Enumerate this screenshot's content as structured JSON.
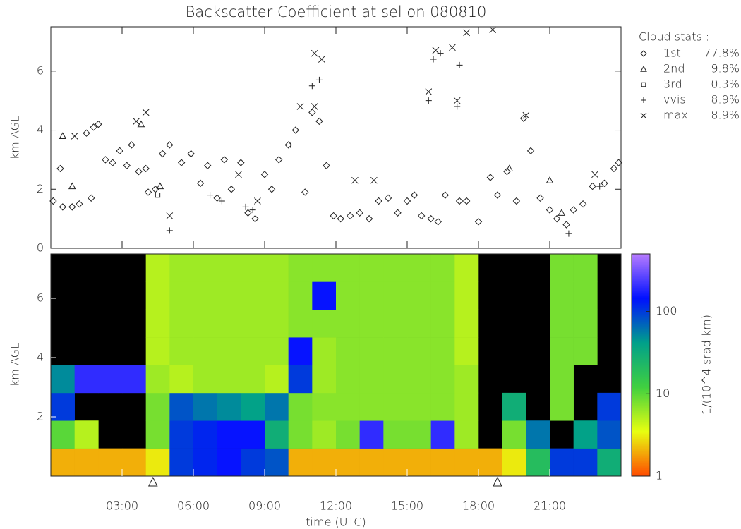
{
  "chart_data": [
    {
      "type": "scatter",
      "title": "Backscatter Coefficient at sel on 080810",
      "ylabel": "km AGL",
      "xlim": [
        0,
        24
      ],
      "ylim": [
        0,
        7.5
      ],
      "yticks": [
        0,
        2,
        4,
        6
      ],
      "legend_title": "Cloud stats.:",
      "series": [
        {
          "name": "1st",
          "percent": "77.8%",
          "marker": "diamond",
          "color": "#222222",
          "x": [
            0.1,
            0.4,
            0.5,
            0.9,
            1.2,
            1.5,
            1.8,
            2.0,
            1.7,
            2.3,
            2.6,
            2.9,
            3.2,
            3.4,
            3.7,
            4.0,
            4.1,
            4.4,
            4.7,
            5.0,
            5.5,
            5.9,
            6.3,
            6.6,
            7.0,
            7.3,
            7.6,
            8.0,
            8.3,
            8.6,
            9.0,
            9.3,
            9.6,
            10.0,
            10.3,
            10.7,
            11.0,
            11.3,
            11.6,
            11.9,
            12.2,
            12.6,
            13.0,
            13.4,
            13.8,
            14.2,
            14.6,
            15.0,
            15.3,
            15.6,
            16.0,
            16.3,
            16.6,
            17.2,
            17.5,
            18.0,
            18.5,
            18.8,
            19.2,
            19.6,
            19.9,
            20.2,
            20.6,
            21.0,
            21.3,
            21.7,
            22.0,
            22.4,
            22.8,
            23.3,
            23.7,
            23.9
          ],
          "y": [
            1.6,
            2.7,
            1.4,
            1.4,
            1.5,
            3.9,
            4.1,
            4.2,
            1.7,
            3.0,
            2.9,
            3.3,
            2.8,
            3.5,
            2.6,
            2.7,
            1.9,
            2.0,
            3.2,
            3.5,
            2.9,
            3.2,
            2.2,
            2.8,
            1.7,
            3.0,
            2.0,
            2.9,
            1.2,
            1.0,
            2.5,
            2.0,
            3.0,
            3.5,
            4.0,
            1.9,
            4.6,
            4.3,
            2.8,
            1.1,
            1.0,
            1.1,
            1.2,
            1.0,
            1.6,
            1.7,
            1.2,
            1.6,
            1.8,
            1.1,
            1.0,
            0.9,
            1.8,
            1.6,
            1.6,
            0.9,
            2.4,
            1.8,
            2.6,
            1.6,
            4.4,
            3.3,
            1.7,
            1.3,
            1.0,
            0.8,
            1.3,
            1.5,
            2.1,
            2.2,
            2.7,
            2.9
          ]
        },
        {
          "name": "2nd",
          "percent": "9.8%",
          "marker": "triangle",
          "color": "#222222",
          "x": [
            0.5,
            0.9,
            3.8,
            4.6,
            19.3,
            21.0,
            21.5
          ],
          "y": [
            3.8,
            2.1,
            4.2,
            2.1,
            2.7,
            2.3,
            1.2
          ]
        },
        {
          "name": "3rd",
          "percent": "0.3%",
          "marker": "square",
          "color": "#222222",
          "x": [
            4.5
          ],
          "y": [
            1.8
          ]
        },
        {
          "name": "vvis",
          "percent": "8.9%",
          "marker": "plus",
          "color": "#222222",
          "x": [
            5.0,
            6.7,
            7.2,
            8.2,
            8.5,
            11.0,
            11.3,
            15.9,
            16.1,
            16.4,
            17.1,
            17.2,
            21.8,
            23.1,
            10.1
          ],
          "y": [
            0.6,
            1.8,
            1.6,
            1.4,
            1.3,
            5.5,
            5.7,
            5.0,
            6.4,
            6.6,
            4.8,
            6.2,
            0.5,
            2.1,
            3.5
          ]
        },
        {
          "name": "max",
          "percent": "8.9%",
          "marker": "cross",
          "color": "#222222",
          "x": [
            1.0,
            3.6,
            4.0,
            5.0,
            7.9,
            8.7,
            10.5,
            11.1,
            11.4,
            11.1,
            12.8,
            13.6,
            15.9,
            16.2,
            17.1,
            16.9,
            17.5,
            18.6,
            20.0,
            22.9
          ],
          "y": [
            3.8,
            4.3,
            4.6,
            1.1,
            2.5,
            1.6,
            4.8,
            6.6,
            6.4,
            4.8,
            2.3,
            2.3,
            5.3,
            6.7,
            5.0,
            6.8,
            7.3,
            7.4,
            4.5,
            2.5
          ]
        }
      ]
    },
    {
      "type": "heatmap",
      "ylabel": "km AGL",
      "xlabel": "time (UTC)",
      "xlim": [
        0,
        24
      ],
      "ylim": [
        0,
        7.5
      ],
      "yticks": [
        2,
        4,
        6
      ],
      "xticks": [
        {
          "value": 3,
          "label": "03:00"
        },
        {
          "value": 6,
          "label": "06:00"
        },
        {
          "value": 9,
          "label": "09:00"
        },
        {
          "value": 12,
          "label": "12:00"
        },
        {
          "value": 15,
          "label": "15:00"
        },
        {
          "value": 18,
          "label": "18:00"
        },
        {
          "value": 21,
          "label": "21:00"
        }
      ],
      "markers_x": [
        4.3,
        18.8
      ],
      "colorbar_label": "1/(10^4 srad km)",
      "zlim": [
        1,
        500
      ],
      "zscale": "log",
      "zticks": [
        1,
        10,
        100
      ],
      "colormap": [
        "#ff4a00",
        "#e8ff10",
        "#40d040",
        "#00a08a",
        "#0010ff",
        "#b87cff"
      ],
      "z": [
        [
          2,
          2,
          2,
          2,
          3,
          100,
          120,
          150,
          100,
          80,
          2,
          2,
          2,
          2,
          2,
          2,
          2,
          2,
          2,
          3,
          20,
          100,
          100,
          30
        ],
        [
          10,
          5,
          null,
          null,
          8,
          100,
          120,
          150,
          150,
          30,
          8,
          6,
          8,
          200,
          8,
          8,
          200,
          6,
          null,
          8,
          60,
          null,
          40,
          80
        ],
        [
          100,
          null,
          null,
          null,
          8,
          80,
          60,
          50,
          40,
          60,
          8,
          7,
          7,
          7,
          7,
          7,
          7,
          6,
          null,
          30,
          null,
          8,
          null,
          100
        ],
        [
          50,
          200,
          200,
          200,
          6,
          5,
          6,
          6,
          6,
          5,
          100,
          6,
          7,
          7,
          7,
          7,
          7,
          6,
          null,
          null,
          null,
          8,
          null,
          null
        ],
        [
          null,
          null,
          null,
          null,
          5,
          6,
          6,
          6,
          6,
          6,
          150,
          6,
          7,
          7,
          7,
          7,
          7,
          5,
          null,
          null,
          null,
          8,
          8,
          null
        ],
        [
          null,
          null,
          null,
          null,
          5,
          6,
          6,
          6,
          6,
          6,
          7,
          7,
          7,
          7,
          7,
          7,
          7,
          5,
          null,
          null,
          null,
          8,
          8,
          null
        ],
        [
          null,
          null,
          null,
          null,
          5,
          6,
          6,
          6,
          6,
          6,
          7,
          150,
          7,
          7,
          7,
          7,
          7,
          5,
          null,
          null,
          null,
          8,
          8,
          null
        ],
        [
          null,
          null,
          null,
          null,
          5,
          6,
          6,
          6,
          6,
          6,
          7,
          7,
          7,
          7,
          7,
          7,
          7,
          5,
          null,
          null,
          null,
          8,
          8,
          null
        ]
      ]
    }
  ]
}
